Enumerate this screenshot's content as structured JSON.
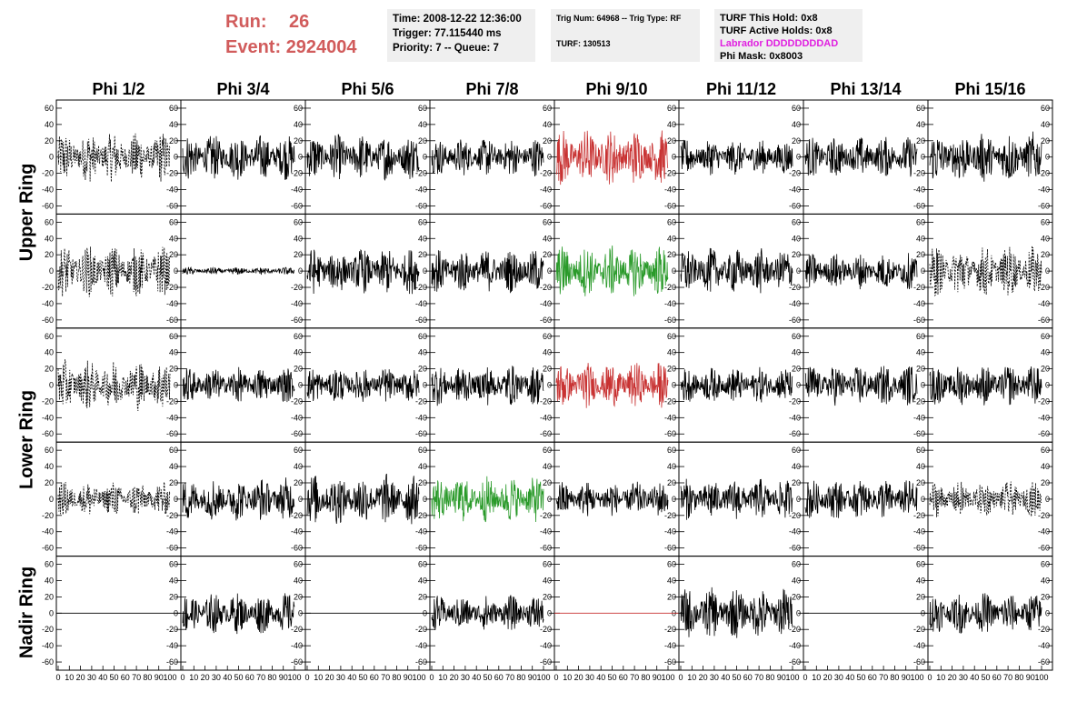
{
  "header": {
    "run_label": "Run:",
    "run_value": "26",
    "event_label": "Event:",
    "event_value": "2924004",
    "time": "Time: 2008-12-22 12:36:00",
    "trigger": "Trigger: 77.115440 ms",
    "priority": "Priority: 7 -- Queue: 7",
    "trig_num": "Trig Num: 64968 -- Trig Type: RF",
    "turf": "TURF: 130513",
    "turf_hold": "TURF This Hold: 0x8",
    "turf_active": "TURF Active Holds: 0x8",
    "labrador": "Labrador DDDDDDDDAD",
    "phi_mask": "Phi Mask: 0x8003"
  },
  "colors": {
    "red_text": "#d15c5c",
    "magenta": "#e020e0",
    "trace_black": "#000000",
    "trace_red": "#c83232",
    "trace_green": "#2a9a2a",
    "panel_bg": "#efefef"
  },
  "chart_data": {
    "type": "line",
    "columns": [
      "Phi 1/2",
      "Phi 3/4",
      "Phi 5/6",
      "Phi 7/8",
      "Phi 9/10",
      "Phi 11/12",
      "Phi 13/14",
      "Phi 15/16"
    ],
    "rows": [
      "Upper Ring",
      "Upper Ring",
      "Lower Ring",
      "Lower Ring",
      "Nadir Ring"
    ],
    "row_labels": [
      "Upper Ring",
      "Lower Ring",
      "Nadir Ring"
    ],
    "xlim": [
      0,
      100
    ],
    "ylim": [
      -70,
      70
    ],
    "x_ticks": [
      "0",
      "10",
      "20",
      "30",
      "40",
      "50",
      "60",
      "70",
      "80",
      "90",
      "100"
    ],
    "y_ticks": [
      -60,
      -40,
      -20,
      0,
      20,
      40,
      60
    ],
    "panels": [
      [
        "dashed",
        "black",
        "black",
        "black",
        "red",
        "black",
        "black",
        "black"
      ],
      [
        "dashed",
        "black-small",
        "black",
        "black",
        "green",
        "black",
        "black",
        "dashed"
      ],
      [
        "dashed",
        "black",
        "black",
        "black",
        "red",
        "black",
        "black",
        "black"
      ],
      [
        "dashed",
        "black",
        "black",
        "green",
        "black",
        "black",
        "black",
        "dashed"
      ],
      [
        "flat",
        "black",
        "flat",
        "black",
        "flat-red",
        "black",
        "flat",
        "black"
      ]
    ],
    "amplitudes": [
      [
        20,
        18,
        18,
        15,
        22,
        14,
        16,
        20
      ],
      [
        20,
        3,
        18,
        17,
        20,
        18,
        14,
        20
      ],
      [
        20,
        14,
        14,
        16,
        18,
        14,
        16,
        16
      ],
      [
        14,
        17,
        20,
        18,
        14,
        16,
        16,
        14
      ],
      [
        0,
        16,
        0,
        14,
        0,
        20,
        0,
        16
      ]
    ]
  }
}
